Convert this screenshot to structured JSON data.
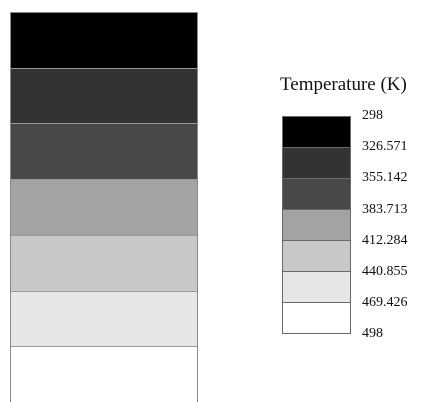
{
  "legend": {
    "title": "Temperature (K)",
    "ticks": [
      "298",
      "326.571",
      "355.142",
      "383.713",
      "412.284",
      "440.855",
      "469.426",
      "498"
    ]
  },
  "colors": {
    "levels": [
      "#000000",
      "#333333",
      "#484848",
      "#a3a3a3",
      "#c8c8c8",
      "#e6e6e6",
      "#ffffff"
    ],
    "outline": "#8a8a8a"
  }
}
